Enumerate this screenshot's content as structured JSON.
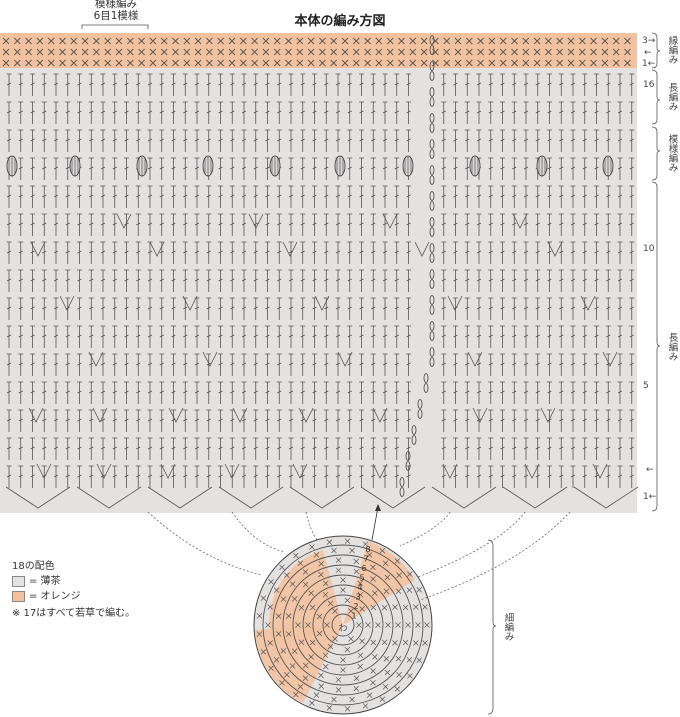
{
  "title": "本体の編み方図",
  "pattern_label": {
    "line1": "模様編み",
    "line2": "6目1模様"
  },
  "row_numbers": {
    "r3": "3→",
    "r2": "←",
    "r1": "1←",
    "r16": "16",
    "r10": "10",
    "r5": "5",
    "base_arrow": "←",
    "base1": "1←"
  },
  "section_labels": {
    "edge": "縁編み",
    "dc_top": "長編み",
    "pattern": "模様編み",
    "dc_main": "長編み",
    "sc_bottom": "細編み"
  },
  "bottom_round_numbers": [
    "8",
    "7",
    "6",
    "5",
    "4",
    "3",
    "2",
    "1"
  ],
  "ring_label": "わ",
  "legend": {
    "title": "18の配色",
    "items": [
      {
        "label": "= 薄茶",
        "color": "#e4e1e1"
      },
      {
        "label": "= オレンジ",
        "color": "#f2c29e"
      }
    ],
    "note": "※ 17はすべて若草で編む。"
  },
  "colors": {
    "body_fill": "#e4e1e1",
    "edge_fill": "#f2c29e"
  }
}
